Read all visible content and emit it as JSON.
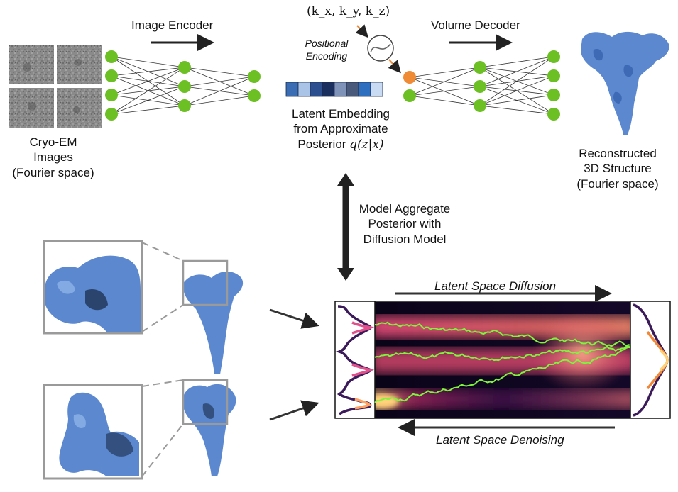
{
  "encoder": {
    "label": "Image Encoder",
    "input_caption": [
      "Cryo-EM",
      "Images",
      "(Fourier space)"
    ]
  },
  "coords": {
    "label": "(k_x, k_y, k_z)"
  },
  "positional_encoding": {
    "line1": "Positional",
    "line2": "Encoding"
  },
  "latent": {
    "line1": "Latent Embedding",
    "line2": "from Approximate",
    "line3_prefix": "Posterior",
    "line3_math": "q(z|x)",
    "embedding_colors": [
      "#3a6db3",
      "#a9c4e6",
      "#2b4f8f",
      "#1b2f5e",
      "#7f93b8",
      "#4a5a7a",
      "#2f6fc0",
      "#c9dbf2"
    ]
  },
  "decoder": {
    "label": "Volume Decoder",
    "output_caption": [
      "Reconstructed",
      "3D Structure",
      "(Fourier space)"
    ]
  },
  "aggregate": {
    "lines": [
      "Model Aggregate",
      "Posterior with",
      "Diffusion Model"
    ]
  },
  "diffusion": {
    "top_label": "Latent Space Diffusion",
    "bottom_label": "Latent Space Denoising"
  },
  "colors": {
    "node_green": "#6cc024",
    "node_orange": "#ef8a35",
    "protein_blue": "#5b88cf",
    "trajectory_green": "#7cf53a",
    "zoom_gray": "#9a9a9a"
  }
}
